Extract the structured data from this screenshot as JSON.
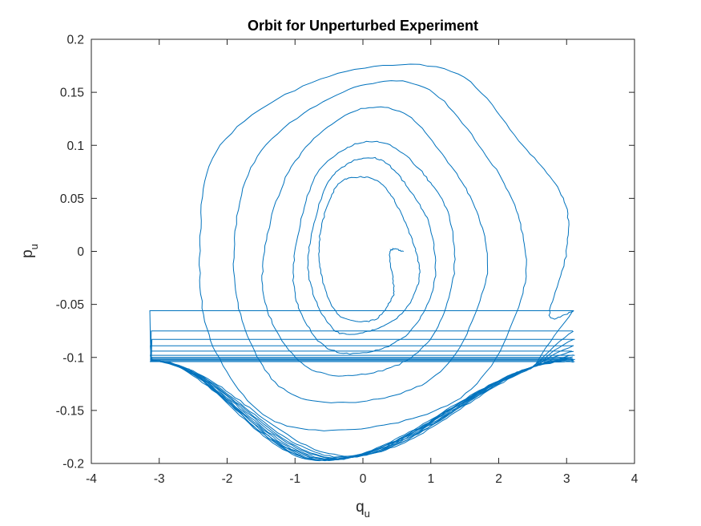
{
  "chart_data": {
    "type": "line",
    "title": "Orbit for Unperturbed Experiment",
    "xlabel": {
      "main": "q",
      "sub": "u"
    },
    "ylabel": {
      "main": "p",
      "sub": "u"
    },
    "xlim": [
      -4,
      4
    ],
    "ylim": [
      -0.2,
      0.2
    ],
    "xticks": [
      -4,
      -3,
      -2,
      -1,
      0,
      1,
      2,
      3,
      4
    ],
    "xtick_labels": [
      "-4",
      "-3",
      "-2",
      "-1",
      "0",
      "1",
      "2",
      "3",
      "4"
    ],
    "yticks": [
      -0.2,
      -0.15,
      -0.1,
      -0.05,
      0,
      0.05,
      0.1,
      0.15,
      0.2
    ],
    "ytick_labels": [
      "-0.2",
      "-0.15",
      "-0.1",
      "-0.05",
      "0",
      "0.05",
      "0.1",
      "0.15",
      "0.2"
    ],
    "grid": false,
    "line_color": "#0072BD",
    "series": [
      {
        "name": "orbit",
        "description": "trajectory sampled by model: spiral orbit then rotations",
        "x": [
          0.6,
          0.4,
          0.45,
          0.42,
          0.15,
          -0.35,
          -0.62,
          -0.62,
          -0.4,
          -0.1,
          0.25,
          0.53,
          0.78,
          0.82,
          0.55,
          0.1,
          -0.4,
          -0.73,
          -0.8,
          -0.55,
          -0.15,
          0.3,
          0.72,
          1.0,
          1.05,
          0.7,
          0.1,
          -0.55,
          -0.96,
          -1.0,
          -0.7,
          -0.15,
          0.4,
          0.93,
          1.28,
          1.32,
          0.9,
          0.1,
          -0.8,
          -1.38,
          -1.45,
          -1.05,
          -0.2,
          0.6,
          1.3,
          1.72,
          1.8,
          1.2,
          0.15,
          -1.05,
          -1.7,
          -1.9,
          -1.55,
          -0.3,
          0.9,
          1.82,
          2.3,
          2.35,
          1.6,
          0.2,
          -1.3,
          -2.2,
          -2.4,
          -2.1,
          -0.5,
          1.3,
          2.35,
          2.95,
          3.0,
          2.75,
          3.1
        ],
        "y": [
          0.0,
          0.0,
          -0.03,
          -0.045,
          -0.065,
          -0.06,
          -0.02,
          0.02,
          0.06,
          0.07,
          0.065,
          0.04,
          0.0,
          -0.03,
          -0.06,
          -0.075,
          -0.075,
          -0.04,
          0.0,
          0.06,
          0.085,
          0.085,
          0.055,
          0.02,
          -0.03,
          -0.075,
          -0.095,
          -0.09,
          -0.05,
          0.0,
          0.07,
          0.1,
          0.1,
          0.07,
          0.03,
          -0.03,
          -0.09,
          -0.115,
          -0.11,
          -0.06,
          0.0,
          0.08,
          0.13,
          0.13,
          0.08,
          0.03,
          -0.03,
          -0.11,
          -0.14,
          -0.135,
          -0.08,
          0.0,
          0.09,
          0.15,
          0.155,
          0.09,
          0.03,
          -0.04,
          -0.13,
          -0.165,
          -0.16,
          -0.09,
          0.0,
          0.1,
          0.165,
          0.17,
          0.1,
          0.05,
          0.0,
          -0.06,
          -0.056
        ]
      }
    ],
    "rotations": [
      {
        "top_y": -0.056,
        "dip_y": -0.193,
        "dip_x": -0.2
      },
      {
        "top_y": -0.075,
        "dip_y": -0.194,
        "dip_x": -0.3
      },
      {
        "top_y": -0.083,
        "dip_y": -0.195,
        "dip_x": -0.35
      },
      {
        "top_y": -0.089,
        "dip_y": -0.195,
        "dip_x": -0.4
      },
      {
        "top_y": -0.094,
        "dip_y": -0.196,
        "dip_x": -0.45
      },
      {
        "top_y": -0.098,
        "dip_y": -0.196,
        "dip_x": -0.5
      },
      {
        "top_y": -0.1,
        "dip_y": -0.196,
        "dip_x": -0.55
      },
      {
        "top_y": -0.101,
        "dip_y": -0.197,
        "dip_x": -0.55
      },
      {
        "top_y": -0.102,
        "dip_y": -0.197,
        "dip_x": -0.6
      },
      {
        "top_y": -0.103,
        "dip_y": -0.197,
        "dip_x": -0.6
      },
      {
        "top_y": -0.104,
        "dip_y": -0.197,
        "dip_x": -0.65
      }
    ]
  }
}
